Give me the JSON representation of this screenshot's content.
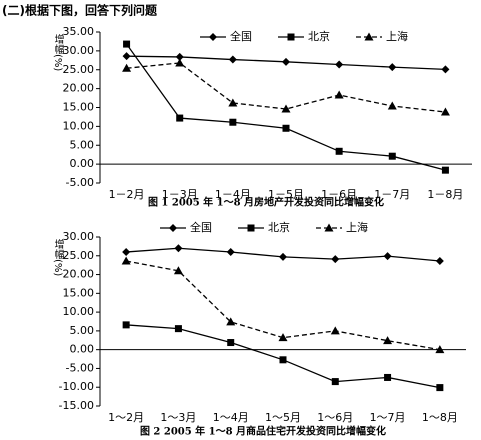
{
  "header": {
    "title": "(二)根据下图，回答下列问题"
  },
  "chart_data": [
    {
      "type": "line",
      "caption": "图 1   2005 年 1～8 月房地产开发投资同比增幅变化",
      "ylabel": "增幅(%)",
      "categories": [
        "1－2月",
        "1－3月",
        "1－4月",
        "1－5月",
        "1－6月",
        "1－7月",
        "1－8月"
      ],
      "series": [
        {
          "name": "全国",
          "color": "#000000",
          "marker": "diamond",
          "line_style": "solid",
          "values": [
            28.6,
            28.4,
            27.7,
            27.1,
            26.4,
            25.7,
            25.1
          ]
        },
        {
          "name": "北京",
          "color": "#000000",
          "marker": "square",
          "line_style": "solid",
          "values": [
            31.8,
            12.2,
            11.1,
            9.5,
            3.4,
            2.1,
            -1.6
          ]
        },
        {
          "name": "上海",
          "color": "#000000",
          "marker": "triangle",
          "line_style": "dashed",
          "values": [
            25.4,
            26.8,
            16.2,
            14.6,
            18.3,
            15.4,
            13.8
          ]
        }
      ],
      "ylim": [
        -5,
        35
      ],
      "yticks": [
        {
          "value": -5,
          "label": "-5.00"
        },
        {
          "value": 0,
          "label": "0.00"
        },
        {
          "value": 5,
          "label": "5.00"
        },
        {
          "value": 10,
          "label": "10.00"
        },
        {
          "value": 15,
          "label": "15.00"
        },
        {
          "value": 20,
          "label": "20.00"
        },
        {
          "value": 25,
          "label": "25.00"
        },
        {
          "value": 30,
          "label": "30.00"
        },
        {
          "value": 35,
          "label": "35.00"
        }
      ]
    },
    {
      "type": "line",
      "caption": "图 2   2005 年 1～8 月商品住宅开发投资同比增幅变化",
      "ylabel": "增幅(%)",
      "categories": [
        "1～2月",
        "1～3月",
        "1～4月",
        "1～5月",
        "1～6月",
        "1～7月",
        "1～8月"
      ],
      "series": [
        {
          "name": "全国",
          "color": "#000000",
          "marker": "diamond",
          "line_style": "solid",
          "values": [
            26.0,
            27.0,
            26.0,
            24.7,
            24.1,
            24.9,
            23.6
          ]
        },
        {
          "name": "北京",
          "color": "#000000",
          "marker": "square",
          "line_style": "solid",
          "values": [
            6.6,
            5.6,
            1.9,
            -2.7,
            -8.5,
            -7.4,
            -10.1
          ]
        },
        {
          "name": "上海",
          "color": "#000000",
          "marker": "triangle",
          "line_style": "dashed",
          "values": [
            23.6,
            21.0,
            7.4,
            3.2,
            5.0,
            2.4,
            0
          ]
        }
      ],
      "ylim": [
        -15,
        30
      ],
      "yticks": [
        {
          "value": -15,
          "label": "-15.00"
        },
        {
          "value": -10,
          "label": "-10.00"
        },
        {
          "value": -5,
          "label": "-5.00"
        },
        {
          "value": 0,
          "label": "0.00"
        },
        {
          "value": 5,
          "label": "5.00"
        },
        {
          "value": 10,
          "label": "10.00"
        },
        {
          "value": 15,
          "label": "15.00"
        },
        {
          "value": 20,
          "label": "20.00"
        },
        {
          "value": 25,
          "label": "25.00"
        },
        {
          "value": 30,
          "label": "30.00"
        }
      ]
    }
  ]
}
